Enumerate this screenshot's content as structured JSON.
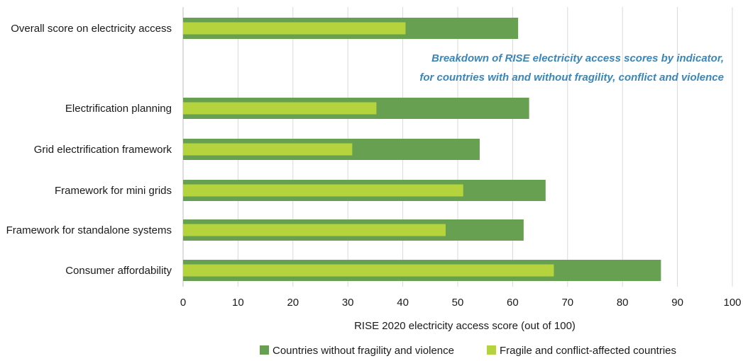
{
  "chart_data": {
    "type": "bar",
    "orientation": "horizontal",
    "categories": [
      "Overall score on electricity access",
      "Electrification planning",
      "Grid electrification framework",
      "Framework for mini grids",
      "Framework for standalone systems",
      "Consumer affordability"
    ],
    "series": [
      {
        "name": "Countries without fragility and violence",
        "color": "#66a050",
        "values": [
          61,
          63,
          54,
          66,
          62,
          87
        ]
      },
      {
        "name": "Fragile and conflict-affected countries",
        "color": "#b5d33d",
        "values": [
          40.5,
          35.2,
          30.8,
          51.0,
          47.8,
          67.5
        ]
      }
    ],
    "xlabel": "RISE 2020 electricity access score (out of 100)",
    "ylabel": "",
    "xlim": [
      0,
      100
    ],
    "xticks": [
      "0",
      "10",
      "20",
      "30",
      "40",
      "50",
      "60",
      "70",
      "80",
      "90",
      "100"
    ],
    "grid": true,
    "legend_position": "bottom",
    "annotation": {
      "lines": [
        "Breakdown of RISE electricity access scores by indicator,",
        "for countries with and without fragility, conflict and violence"
      ],
      "color": "#3a86b8"
    }
  }
}
